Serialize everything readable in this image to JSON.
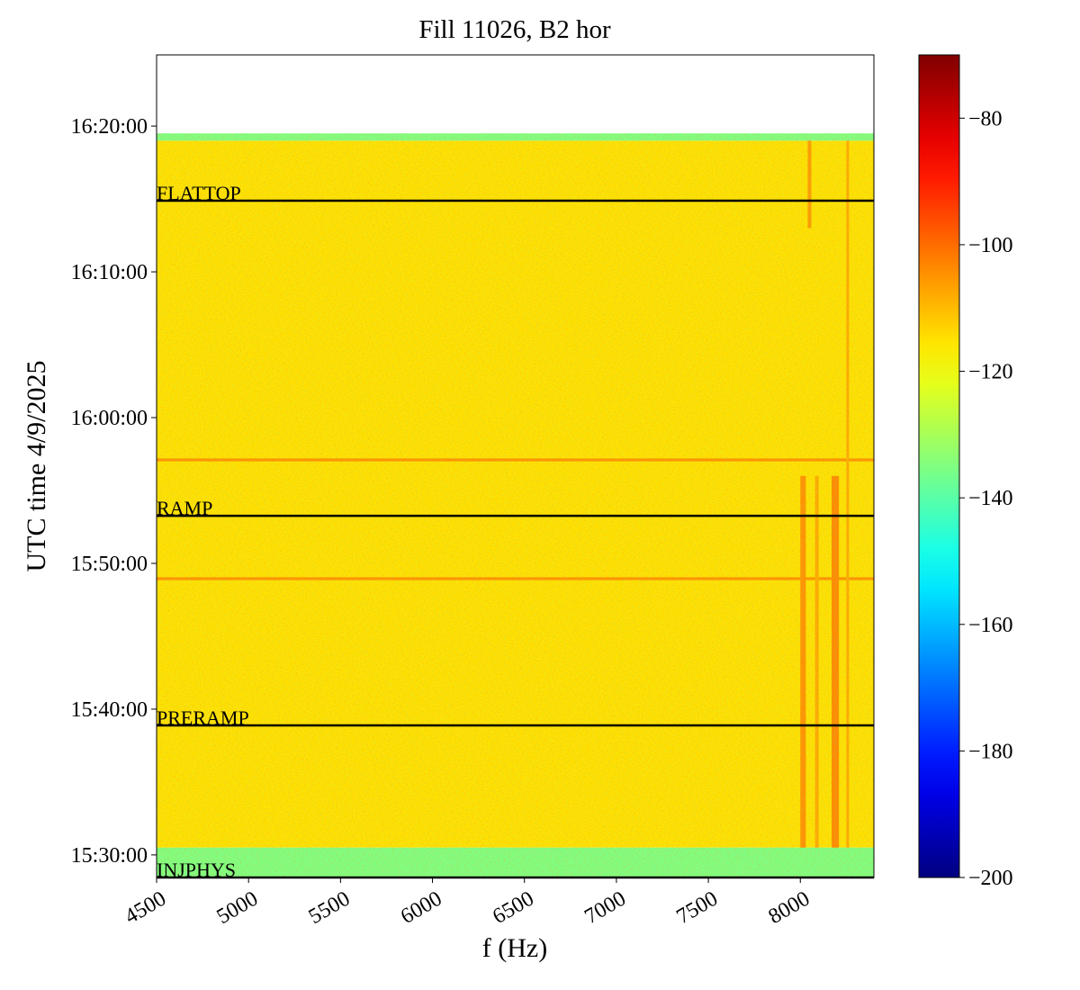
{
  "chart_data": {
    "type": "heatmap",
    "title": "Fill 11026, B2 hor",
    "xlabel": "f (Hz)",
    "ylabel": "UTC time 4/9/2025",
    "xlim": [
      4500,
      8400
    ],
    "xticks": [
      4500,
      5000,
      5500,
      6000,
      6500,
      7000,
      7500,
      8000
    ],
    "ylim": [
      "15:28:27",
      "16:24:53"
    ],
    "yticks": [
      "15:30:00",
      "15:40:00",
      "15:50:00",
      "16:00:00",
      "16:10:00",
      "16:20:00"
    ],
    "colormap": "jet",
    "clim": [
      -200,
      -70
    ],
    "cticks": [
      {
        "value": -200,
        "label": "−200"
      },
      {
        "value": -180,
        "label": "−180"
      },
      {
        "value": -160,
        "label": "−160"
      },
      {
        "value": -140,
        "label": "−140"
      },
      {
        "value": -120,
        "label": "−120"
      },
      {
        "value": -100,
        "label": "−100"
      },
      {
        "value": -80,
        "label": "−80"
      }
    ],
    "cells": [
      {
        "x": [
          4500,
          8400
        ],
        "y": [
          "15:30:30",
          "16:19:00"
        ],
        "value": -115
      },
      {
        "x": [
          4500,
          8400
        ],
        "y": [
          "16:19:00",
          "16:19:30"
        ],
        "value": -135
      },
      {
        "x": [
          4500,
          8400
        ],
        "y": [
          "15:28:27",
          "15:30:30"
        ],
        "value": -135
      },
      {
        "x": [
          4500,
          8400
        ],
        "y": [
          "15:57:00",
          "15:57:12"
        ],
        "value": -105
      },
      {
        "x": [
          4500,
          8400
        ],
        "y": [
          "15:48:51",
          "15:49:03"
        ],
        "value": -105
      },
      {
        "x": [
          8000,
          8030
        ],
        "y": [
          "15:30:30",
          "15:56:00"
        ],
        "value": -105
      },
      {
        "x": [
          8080,
          8100
        ],
        "y": [
          "15:30:30",
          "15:56:00"
        ],
        "value": -108
      },
      {
        "x": [
          8170,
          8210
        ],
        "y": [
          "15:30:30",
          "15:56:00"
        ],
        "value": -104
      },
      {
        "x": [
          8250,
          8265
        ],
        "y": [
          "15:30:30",
          "16:19:00"
        ],
        "value": -108
      },
      {
        "x": [
          8040,
          8060
        ],
        "y": [
          "16:13:00",
          "16:19:00"
        ],
        "value": -106
      }
    ],
    "phases": [
      {
        "label": "FLATTOP",
        "time": "16:14:53"
      },
      {
        "label": "RAMP",
        "time": "15:53:16"
      },
      {
        "label": "PRERAMP",
        "time": "15:38:53"
      },
      {
        "label": "INJPHYS",
        "time": "15:28:27"
      }
    ],
    "phase_color": "#000000"
  }
}
